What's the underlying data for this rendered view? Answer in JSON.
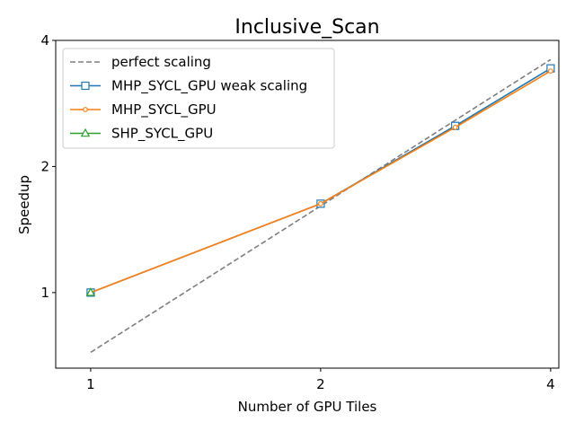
{
  "chart_data": {
    "type": "line",
    "title": "Inclusive_Scan",
    "xlabel": "Number of GPU Tiles",
    "ylabel": "Speedup",
    "x_scale": "log2",
    "y_scale": "log2",
    "xlim": [
      0.9,
      4.1
    ],
    "ylim": [
      0.66,
      4.0
    ],
    "x_ticks": [
      1,
      2,
      4
    ],
    "x_tick_labels": [
      "1",
      "2",
      "4"
    ],
    "y_ticks": [
      1,
      2,
      4
    ],
    "y_tick_labels": [
      "1",
      "2",
      "4"
    ],
    "grid": false,
    "legend_position": "top-left",
    "series": [
      {
        "name": "perfect scaling",
        "color": "#7f7f7f",
        "line_style": "dashed",
        "marker": "none",
        "x": [
          1,
          4
        ],
        "y": [
          0.72,
          3.6
        ]
      },
      {
        "name": "MHP_SYCL_GPU weak scaling",
        "color": "#1f77b4",
        "line_style": "solid",
        "marker": "square",
        "x": [
          1,
          2,
          3,
          4
        ],
        "y": [
          1.0,
          1.63,
          2.5,
          3.43
        ]
      },
      {
        "name": "MHP_SYCL_GPU",
        "color": "#ff7f0e",
        "line_style": "solid",
        "marker": "circle",
        "x": [
          1,
          2,
          3,
          4
        ],
        "y": [
          1.0,
          1.63,
          2.48,
          3.38
        ]
      },
      {
        "name": "SHP_SYCL_GPU",
        "color": "#2ca02c",
        "line_style": "solid",
        "marker": "triangle",
        "x": [
          1
        ],
        "y": [
          1.0
        ]
      }
    ]
  }
}
